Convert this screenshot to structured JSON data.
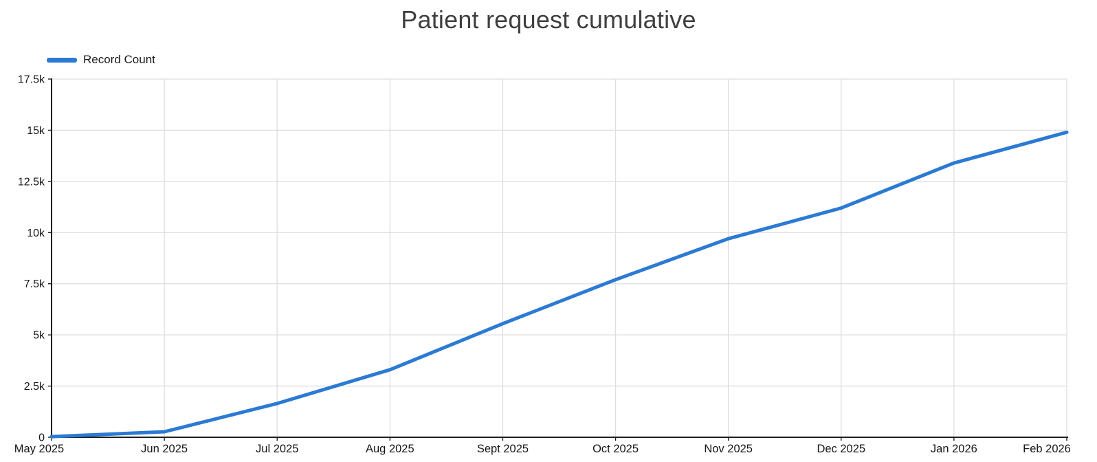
{
  "title": "Patient request cumulative",
  "legend": {
    "label": "Record Count"
  },
  "colors": {
    "series": "#2b7ad3",
    "grid": "#dedede",
    "axis": "#1f1f1f",
    "title_text": "#3f3f3f",
    "label_text": "#161616"
  },
  "chart_data": {
    "type": "line",
    "title": "Patient request cumulative",
    "categories": [
      "May 2025",
      "Jun 2025",
      "Jul 2025",
      "Aug 2025",
      "Sept 2025",
      "Oct 2025",
      "Nov 2025",
      "Dec 2025",
      "Jan 2026",
      "Feb 2026"
    ],
    "series": [
      {
        "name": "Record Count",
        "values": [
          30,
          270,
          1650,
          3300,
          5550,
          7700,
          9700,
          11200,
          13400,
          14900
        ]
      }
    ],
    "xlabel": "",
    "ylabel": "",
    "ylim": [
      0,
      17500
    ],
    "ytick_values": [
      0,
      2500,
      5000,
      7500,
      10000,
      12500,
      15000,
      17500
    ],
    "ytick_labels": [
      "0",
      "2.5k",
      "5k",
      "7.5k",
      "10k",
      "12.5k",
      "15k",
      "17.5k"
    ],
    "grid": true,
    "legend_position": "top-left"
  }
}
